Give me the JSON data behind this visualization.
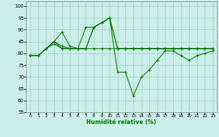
{
  "xlabel": "Humidité relative (%)",
  "background_color": "#cceee8",
  "grid_color": "#99ccbb",
  "line_color": "#007700",
  "xlim": [
    -0.5,
    23.5
  ],
  "ylim": [
    55,
    102
  ],
  "yticks": [
    55,
    60,
    65,
    70,
    75,
    80,
    85,
    90,
    95,
    100
  ],
  "xticks": [
    0,
    1,
    2,
    3,
    4,
    5,
    6,
    7,
    8,
    9,
    10,
    11,
    12,
    13,
    14,
    15,
    16,
    17,
    18,
    19,
    20,
    21,
    22,
    23
  ],
  "series": [
    [
      79,
      79,
      82,
      84,
      82,
      82,
      82,
      82,
      82,
      82,
      82,
      82,
      82,
      82,
      82,
      82,
      82,
      82,
      82,
      82,
      82,
      82,
      82,
      82
    ],
    [
      79,
      79,
      82,
      85,
      89,
      83,
      82,
      91,
      91,
      93,
      95,
      82,
      82,
      82,
      82,
      82,
      82,
      82,
      82,
      82,
      82,
      82,
      82,
      82
    ],
    [
      79,
      79,
      82,
      85,
      82,
      82,
      82,
      82,
      91,
      93,
      95,
      82,
      82,
      82,
      82,
      82,
      82,
      82,
      82,
      82,
      82,
      82,
      82,
      82
    ],
    [
      79,
      79,
      82,
      85,
      83,
      82,
      82,
      82,
      91,
      93,
      95,
      72,
      72,
      62,
      70,
      73,
      77,
      81,
      81,
      79,
      77,
      79,
      80,
      81
    ]
  ]
}
